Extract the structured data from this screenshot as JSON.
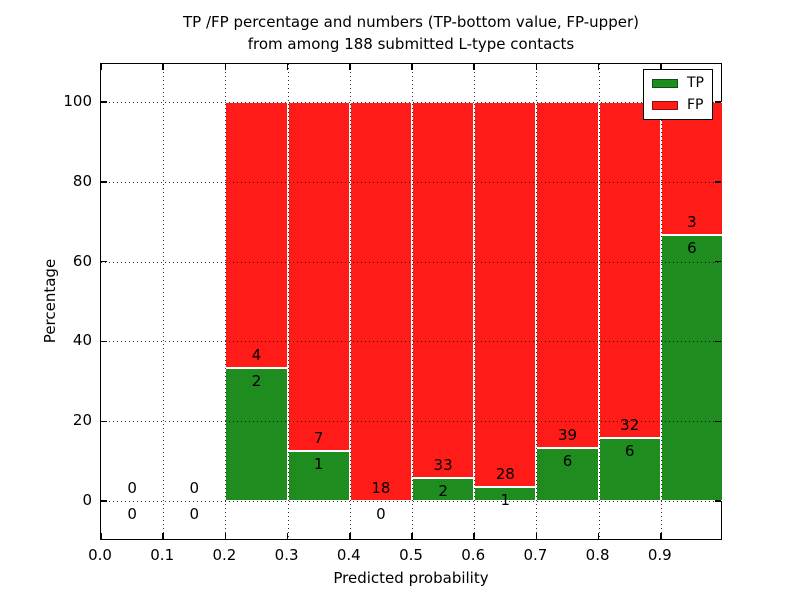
{
  "title": {
    "line1": "TP /FP percentage and numbers (TP-bottom value, FP-upper)",
    "line2": "from among 188 submitted L-type contacts"
  },
  "legend": {
    "items": [
      {
        "label": "TP"
      },
      {
        "label": "FP"
      }
    ]
  },
  "chart_data": {
    "type": "bar",
    "stacked": true,
    "title": "TP /FP percentage and numbers (TP-bottom value, FP-upper)\nfrom among 188 submitted L-type contacts",
    "xlabel": "Predicted probability",
    "ylabel": "Percentage",
    "xlim": [
      0.0,
      1.0
    ],
    "ylim": [
      -10,
      109.5
    ],
    "x_tick_labels": [
      "0.0",
      "0.1",
      "0.2",
      "0.3",
      "0.4",
      "0.5",
      "0.6",
      "0.7",
      "0.8",
      "0.9"
    ],
    "y_ticks": [
      0,
      20,
      40,
      60,
      80,
      100
    ],
    "grid": "dotted",
    "legend_position": "upper right",
    "colors": {
      "tp": "#1e8c1e",
      "fp": "#ff1b17",
      "tp_edge": "#0d4f0d",
      "fp_edge": "#8f0f0c",
      "bar_edge": "#ffffff"
    },
    "series": [
      {
        "name": "TP",
        "counts": [
          0,
          0,
          2,
          1,
          0,
          2,
          1,
          6,
          6,
          6
        ]
      },
      {
        "name": "FP",
        "counts": [
          0,
          0,
          4,
          7,
          18,
          33,
          28,
          39,
          32,
          3
        ]
      }
    ],
    "bins": [
      {
        "x0": 0.0,
        "x1": 0.1,
        "tp": 0,
        "fp": 0,
        "tp_pct": null
      },
      {
        "x0": 0.1,
        "x1": 0.2,
        "tp": 0,
        "fp": 0,
        "tp_pct": null
      },
      {
        "x0": 0.2,
        "x1": 0.3,
        "tp": 2,
        "fp": 4,
        "tp_pct": 33.33
      },
      {
        "x0": 0.3,
        "x1": 0.4,
        "tp": 1,
        "fp": 7,
        "tp_pct": 12.5
      },
      {
        "x0": 0.4,
        "x1": 0.5,
        "tp": 0,
        "fp": 18,
        "tp_pct": 0.0
      },
      {
        "x0": 0.5,
        "x1": 0.6,
        "tp": 2,
        "fp": 33,
        "tp_pct": 5.71
      },
      {
        "x0": 0.6,
        "x1": 0.7,
        "tp": 1,
        "fp": 28,
        "tp_pct": 3.45
      },
      {
        "x0": 0.7,
        "x1": 0.8,
        "tp": 6,
        "fp": 39,
        "tp_pct": 13.33
      },
      {
        "x0": 0.8,
        "x1": 0.9,
        "tp": 6,
        "fp": 32,
        "tp_pct": 15.79
      },
      {
        "x0": 0.9,
        "x1": 1.0,
        "tp": 6,
        "fp": 3,
        "tp_pct": 66.67
      }
    ]
  }
}
